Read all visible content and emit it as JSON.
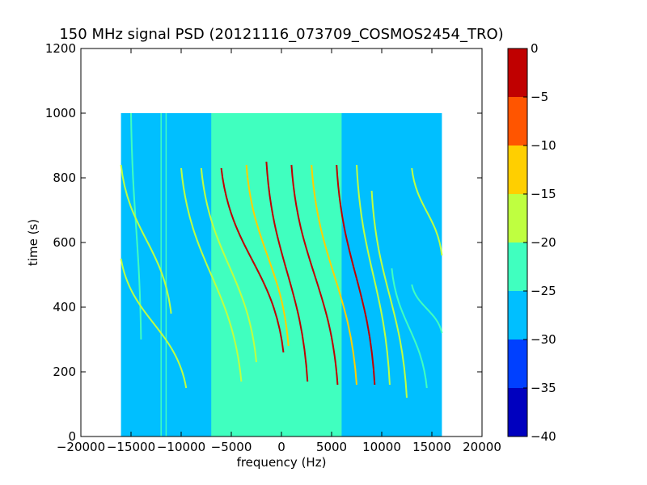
{
  "chart_data": {
    "type": "heatmap",
    "title": "150 MHz signal PSD (20121116_073709_COSMOS2454_TRO)",
    "xlabel": "frequency (Hz)",
    "ylabel": "time (s)",
    "xlim": [
      -20000,
      20000
    ],
    "ylim": [
      0,
      1200
    ],
    "x_ticks": [
      "−20000",
      "−15000",
      "−10000",
      "−5000",
      "0",
      "5000",
      "10000",
      "15000",
      "20000"
    ],
    "x_tick_values": [
      -20000,
      -15000,
      -10000,
      -5000,
      0,
      5000,
      10000,
      15000,
      20000
    ],
    "y_ticks": [
      "0",
      "200",
      "400",
      "600",
      "800",
      "1000",
      "1200"
    ],
    "y_tick_values": [
      0,
      200,
      400,
      600,
      800,
      1000,
      1200
    ],
    "data_extent": {
      "x": [
        -16000,
        16000
      ],
      "y": [
        0,
        1000
      ]
    },
    "background_level": -27.5,
    "central_band": {
      "x": [
        -7000,
        6000
      ],
      "level": -22.5
    },
    "noise_lines_x": [
      -12000,
      -11500
    ],
    "colorbar": {
      "levels": [
        -40,
        -35,
        -30,
        -25,
        -20,
        -15,
        -10,
        -5,
        0
      ],
      "tick_labels": [
        "0",
        "−5",
        "−10",
        "−15",
        "−20",
        "−25",
        "−30",
        "−35",
        "−40"
      ],
      "colors": [
        "#0000bf",
        "#0040ff",
        "#00bfff",
        "#40ffbf",
        "#bfff40",
        "#ffcf00",
        "#ff5500",
        "#c00000"
      ]
    },
    "traces": [
      {
        "points": [
          [
            -15000,
            1000
          ],
          [
            -14000,
            300
          ]
        ],
        "level": -22.5
      },
      {
        "points": [
          [
            -16000,
            840
          ],
          [
            -11000,
            380
          ]
        ],
        "level": -17.5
      },
      {
        "points": [
          [
            -16000,
            550
          ],
          [
            -9500,
            150
          ]
        ],
        "level": -17.5
      },
      {
        "points": [
          [
            -10000,
            830
          ],
          [
            -4000,
            170
          ]
        ],
        "level": -17.5
      },
      {
        "points": [
          [
            -8000,
            830
          ],
          [
            -2500,
            230
          ]
        ],
        "level": -17.5
      },
      {
        "points": [
          [
            -6000,
            830
          ],
          [
            200,
            260
          ]
        ],
        "level": -5
      },
      {
        "points": [
          [
            -3500,
            840
          ],
          [
            700,
            280
          ]
        ],
        "level": -12.5
      },
      {
        "points": [
          [
            -1500,
            850
          ],
          [
            2600,
            170
          ]
        ],
        "level": -5
      },
      {
        "points": [
          [
            1000,
            840
          ],
          [
            5600,
            160
          ]
        ],
        "level": -5
      },
      {
        "points": [
          [
            3000,
            840
          ],
          [
            7500,
            160
          ]
        ],
        "level": -12.5
      },
      {
        "points": [
          [
            5500,
            840
          ],
          [
            9300,
            160
          ]
        ],
        "level": -5
      },
      {
        "points": [
          [
            7500,
            840
          ],
          [
            10800,
            160
          ]
        ],
        "level": -17.5
      },
      {
        "points": [
          [
            9000,
            760
          ],
          [
            12500,
            120
          ]
        ],
        "level": -17.5
      },
      {
        "points": [
          [
            11000,
            520
          ],
          [
            14500,
            150
          ]
        ],
        "level": -22.5
      },
      {
        "points": [
          [
            13000,
            830
          ],
          [
            16000,
            560
          ]
        ],
        "level": -17.5
      },
      {
        "points": [
          [
            13000,
            470
          ],
          [
            16000,
            320
          ]
        ],
        "level": -22.5
      }
    ]
  }
}
